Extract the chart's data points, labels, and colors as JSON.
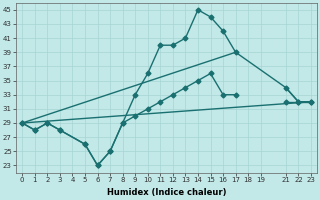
{
  "xlabel": "Humidex (Indice chaleur)",
  "background_color": "#c2e8e8",
  "grid_color": "#a8d4d4",
  "line_color": "#1a7070",
  "xlim": [
    -0.5,
    23.5
  ],
  "ylim": [
    22,
    46
  ],
  "yticks": [
    23,
    25,
    27,
    29,
    31,
    33,
    35,
    37,
    39,
    41,
    43,
    45
  ],
  "xticks": [
    0,
    1,
    2,
    3,
    4,
    5,
    6,
    7,
    8,
    9,
    10,
    11,
    12,
    13,
    14,
    15,
    16,
    17,
    18,
    19,
    21,
    22,
    23
  ],
  "line1_x": [
    0,
    1,
    2,
    3,
    5,
    6,
    7,
    8,
    9,
    10,
    11,
    12,
    13,
    14,
    15,
    16,
    17,
    19,
    21,
    22,
    23
  ],
  "line1_y": [
    29,
    28,
    29,
    28,
    26,
    23,
    25,
    29,
    33,
    36,
    40,
    40,
    41,
    45,
    44,
    42,
    39,
    null,
    34,
    32,
    32
  ],
  "line2_x": [
    0,
    1,
    2,
    3,
    5,
    6,
    7,
    8,
    9,
    10,
    11,
    12,
    13,
    14,
    15,
    16,
    17,
    19,
    21,
    22,
    23
  ],
  "line2_y": [
    29,
    28,
    29,
    28,
    26,
    23,
    25,
    29,
    30,
    31,
    32,
    33,
    34,
    35,
    36,
    33,
    33,
    null,
    32,
    32,
    32
  ],
  "line3_x": [
    0,
    17,
    21,
    22,
    23
  ],
  "line3_y": [
    29,
    39,
    34,
    32,
    32
  ],
  "line4_x": [
    0,
    23
  ],
  "line4_y": [
    29,
    32
  ]
}
